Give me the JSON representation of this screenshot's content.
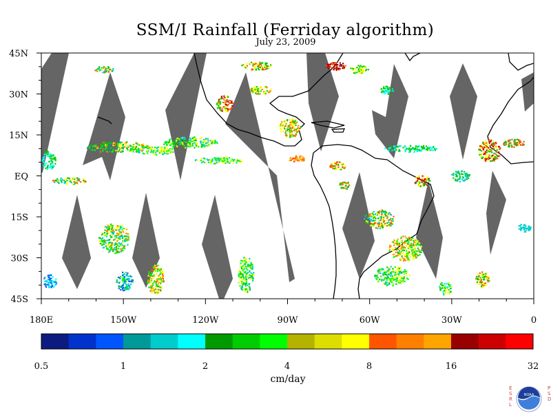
{
  "chart_data": {
    "type": "heatmap",
    "title": "SSM/I Rainfall (Ferriday algorithm)",
    "subtitle": "July 23, 2009",
    "x_ticks": [
      {
        "value": -180,
        "label": "180E"
      },
      {
        "value": -150,
        "label": "150W"
      },
      {
        "value": -120,
        "label": "120W"
      },
      {
        "value": -90,
        "label": "90W"
      },
      {
        "value": -60,
        "label": "60W"
      },
      {
        "value": -30,
        "label": "30W"
      },
      {
        "value": 0,
        "label": "0"
      }
    ],
    "y_ticks": [
      {
        "value": 45,
        "label": "45N"
      },
      {
        "value": 30,
        "label": "30N"
      },
      {
        "value": 15,
        "label": "15N"
      },
      {
        "value": 0,
        "label": "EQ"
      },
      {
        "value": -15,
        "label": "15S"
      },
      {
        "value": -30,
        "label": "30S"
      },
      {
        "value": -45,
        "label": "45S"
      }
    ],
    "xlim": [
      -180,
      0
    ],
    "ylim": [
      -45,
      45
    ],
    "missing_data_color": "#656565",
    "colorbar": {
      "label": "cm/day",
      "colors": [
        "#0d1a80",
        "#0033cc",
        "#0055ff",
        "#009999",
        "#00cccc",
        "#00ffff",
        "#009900",
        "#00cc00",
        "#00ff00",
        "#b3b300",
        "#dddd00",
        "#ffff00",
        "#ff5500",
        "#ff7f00",
        "#ffa500",
        "#990000",
        "#cc0000",
        "#ff0000"
      ],
      "tick_labels": [
        "0.5",
        "1",
        "2",
        "4",
        "8",
        "16",
        "32"
      ]
    },
    "logo_text": {
      "left": "ESRL",
      "right": "PSD",
      "center": "NOAA"
    }
  }
}
